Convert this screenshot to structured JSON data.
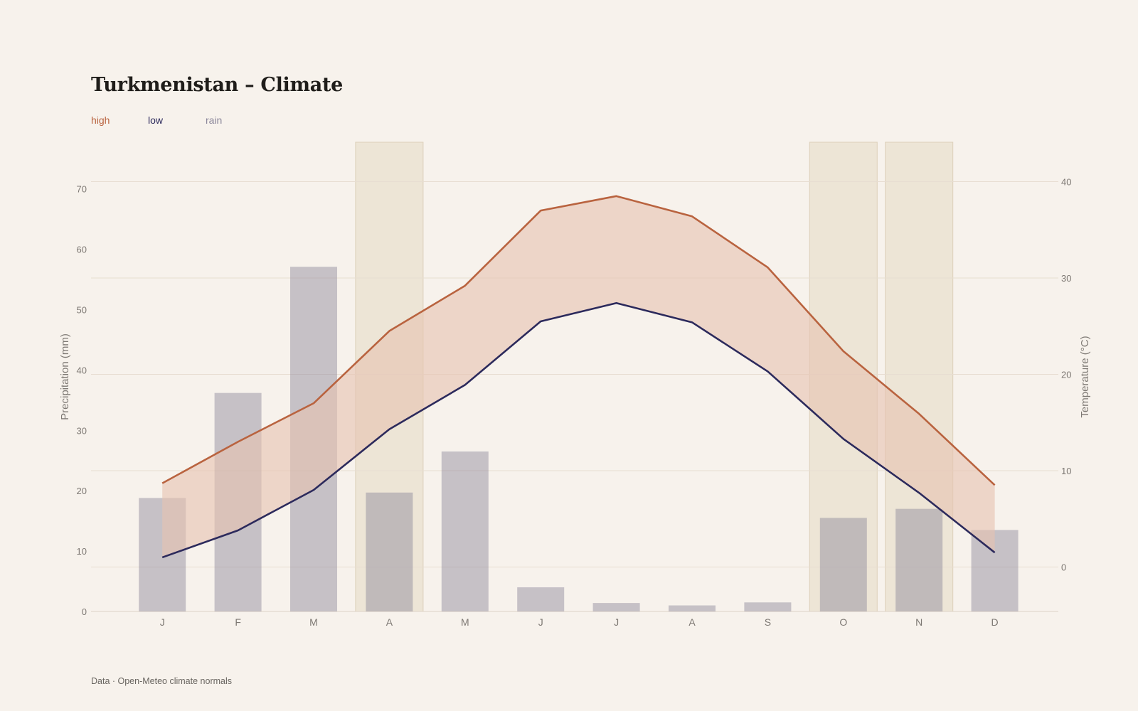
{
  "title": "Turkmenistan – Climate",
  "source": "Data · Open-Meteo climate normals",
  "legend": {
    "high": "high",
    "low": "low",
    "rain": "rain"
  },
  "colors": {
    "high": "#b9633f",
    "low": "#2c2a5c",
    "rain": "#8a869a",
    "band": "#e6c4b2",
    "highlight": "#e6dac5",
    "grid": "#e7ddd1",
    "axis_text": "#7d7873",
    "background": "#f7f2ec"
  },
  "chart_data": {
    "type": "bar+line",
    "categories": [
      "J",
      "F",
      "M",
      "A",
      "M",
      "J",
      "J",
      "A",
      "S",
      "O",
      "N",
      "D"
    ],
    "series": [
      {
        "name": "rain",
        "type": "bar",
        "axis": "left",
        "values": [
          18.8,
          36.2,
          57.1,
          19.7,
          26.5,
          4.0,
          1.4,
          1.0,
          1.5,
          15.5,
          17.0,
          13.5
        ]
      },
      {
        "name": "high",
        "type": "line",
        "axis": "right",
        "values": [
          8.7,
          13.0,
          17.0,
          24.5,
          29.2,
          37.0,
          38.5,
          36.4,
          31.1,
          22.4,
          15.9,
          8.5
        ]
      },
      {
        "name": "low",
        "type": "line",
        "axis": "right",
        "values": [
          1.0,
          3.8,
          8.0,
          14.3,
          18.9,
          25.5,
          27.4,
          25.4,
          20.3,
          13.3,
          7.7,
          1.5
        ]
      }
    ],
    "highlighted_months": [
      3,
      9,
      10
    ],
    "y_left": {
      "label": "Precipitation (mm)",
      "min": 0,
      "max": 70,
      "ticks": [
        0,
        10,
        20,
        30,
        40,
        50,
        60,
        70
      ]
    },
    "y_right": {
      "label": "Temperature (°C)",
      "min": 0,
      "max": 40,
      "ticks": [
        0,
        10,
        20,
        30,
        40
      ]
    },
    "grid": true,
    "legend_position": "top-left"
  }
}
